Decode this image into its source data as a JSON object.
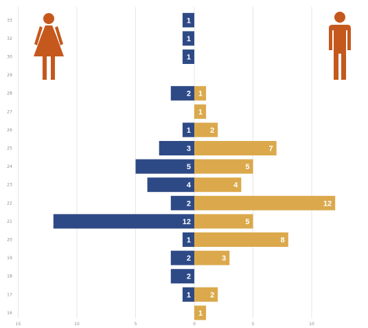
{
  "chart_data": {
    "type": "bar",
    "orientation": "horizontal",
    "layout": "diverging",
    "title": "",
    "xlabel": "",
    "ylabel": "",
    "categories": [
      "33",
      "32",
      "30",
      "29",
      "28",
      "27",
      "26",
      "25",
      "24",
      "23",
      "22",
      "21",
      "20",
      "19",
      "18",
      "17",
      "16"
    ],
    "series": [
      {
        "values": [
          1,
          1,
          1,
          0,
          2,
          0,
          1,
          3,
          5,
          4,
          2,
          12,
          1,
          2,
          2,
          1,
          0
        ]
      },
      {
        "values": [
          0,
          0,
          0,
          0,
          1,
          1,
          2,
          7,
          5,
          4,
          12,
          5,
          8,
          3,
          0,
          2,
          1
        ]
      }
    ],
    "xlim": [
      -15,
      15
    ],
    "x_ticks": [
      -15,
      -10,
      -5,
      0,
      5,
      10
    ],
    "x_tick_labels": [
      "15",
      "10",
      "5",
      "0",
      "5",
      "10"
    ],
    "grid": true,
    "colors": {
      "left": "#2e4a86",
      "right": "#dba94c",
      "icons": "#c5581c",
      "grid": "#e6e6e6"
    },
    "icons": {
      "left": "female-figure-icon",
      "right": "male-figure-icon"
    }
  }
}
